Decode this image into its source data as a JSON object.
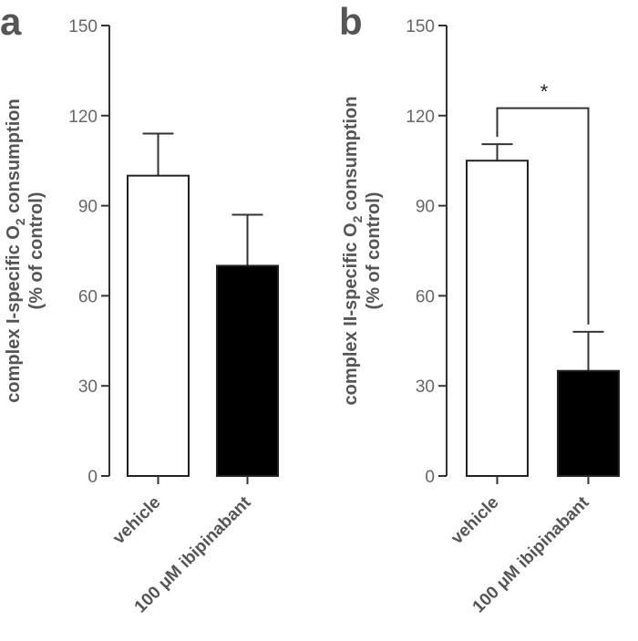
{
  "chart_data": [
    {
      "type": "bar",
      "panel": "a",
      "categories": [
        "vehicle",
        "100 μM ibipinabant"
      ],
      "values": [
        100,
        70
      ],
      "errors": [
        14,
        17
      ],
      "bar_colors": [
        "#ffffff",
        "#000000"
      ],
      "ylabel_line1": "complex I-specific O",
      "ylabel_sub": "2",
      "ylabel_line1_end": " consumption",
      "ylabel_line2": "(% of control)",
      "ylim": [
        0,
        150
      ],
      "yticks": [
        "0",
        "30",
        "60",
        "90",
        "120",
        "150"
      ]
    },
    {
      "type": "bar",
      "panel": "b",
      "categories": [
        "vehicle",
        "100 μM ibipinabant"
      ],
      "values": [
        105,
        35
      ],
      "errors": [
        5.5,
        13
      ],
      "bar_colors": [
        "#ffffff",
        "#000000"
      ],
      "ylabel_line1": "complex II-specific O",
      "ylabel_sub": "2",
      "ylabel_line1_end": " consumption",
      "ylabel_line2": "(% of control)",
      "ylim": [
        0,
        150
      ],
      "yticks": [
        "0",
        "30",
        "60",
        "90",
        "120",
        "150"
      ],
      "significance": {
        "label": "*",
        "bracket_y": 122.5
      }
    }
  ]
}
